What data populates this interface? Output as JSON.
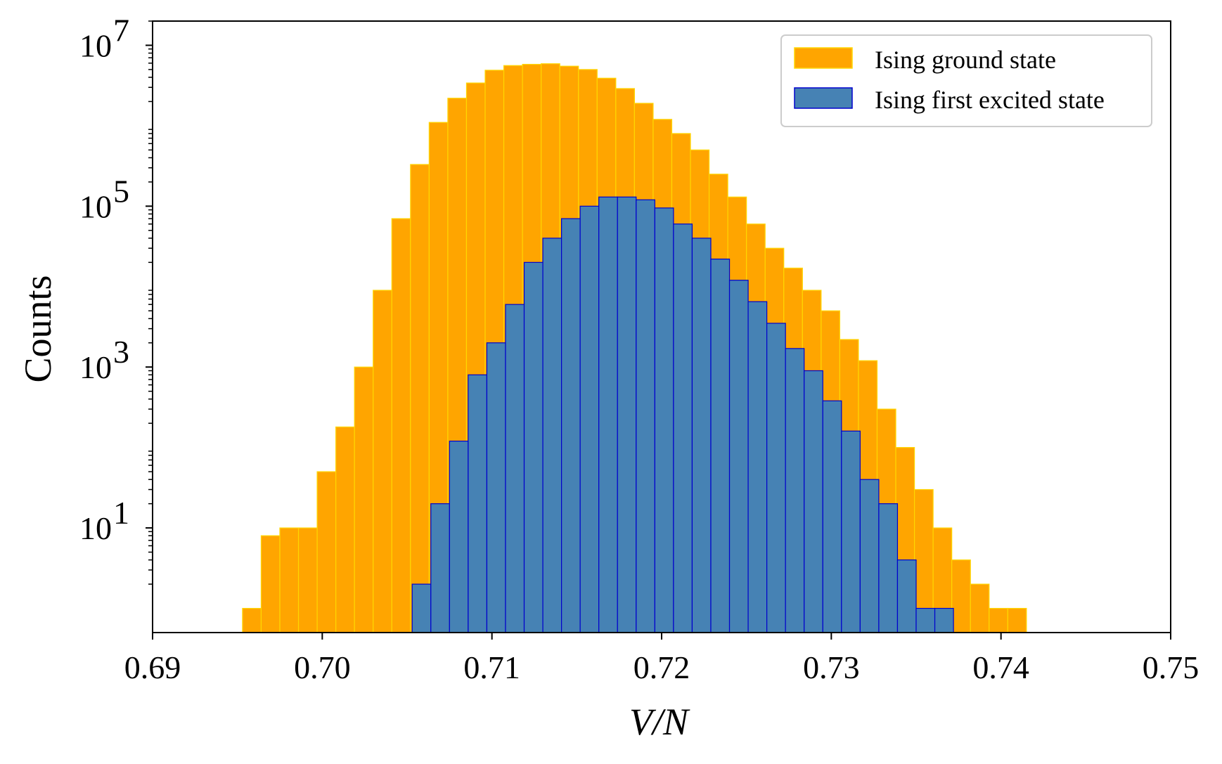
{
  "chart_data": {
    "type": "histogram",
    "title": "",
    "xlabel": "V/N",
    "ylabel": "Counts",
    "x_scale": "linear",
    "y_scale": "log",
    "xlim": [
      0.69,
      0.75
    ],
    "ylim": [
      0.5,
      20000000
    ],
    "x_ticks": [
      0.69,
      0.7,
      0.71,
      0.72,
      0.73,
      0.74,
      0.75
    ],
    "x_tick_labels": [
      "0.69",
      "0.70",
      "0.71",
      "0.72",
      "0.73",
      "0.74",
      "0.75"
    ],
    "y_ticks": [
      10,
      1000,
      100000,
      10000000
    ],
    "y_tick_bases": [
      "10",
      "10",
      "10",
      "10"
    ],
    "y_tick_exponents": [
      "1",
      "3",
      "5",
      "7"
    ],
    "legend_position": "top-right",
    "series": [
      {
        "name": "Ising ground state",
        "fill": "#FFA500",
        "edge": "#FFD700",
        "bin_start": 0.6953,
        "bin_width": 0.0011,
        "counts": [
          1,
          8,
          10,
          10,
          50,
          180,
          1000,
          9000,
          70000,
          330000,
          1100000,
          2200000,
          3400000,
          4900000,
          5600000,
          5800000,
          5900000,
          5500000,
          5000000,
          3900000,
          2900000,
          1900000,
          1200000,
          800000,
          500000,
          250000,
          130000,
          60000,
          30000,
          17000,
          9000,
          5000,
          2200,
          1200,
          300,
          100,
          30,
          10,
          4,
          2,
          1,
          1
        ]
      },
      {
        "name": "Ising first excited state",
        "fill": "#4682B4",
        "edge": "#0000CD",
        "bin_start": 0.7053,
        "bin_width": 0.0011,
        "counts": [
          2,
          20,
          120,
          800,
          2000,
          6000,
          20000,
          40000,
          70000,
          100000,
          130000,
          130000,
          120000,
          95000,
          60000,
          40000,
          22000,
          12000,
          6500,
          3500,
          1700,
          900,
          380,
          160,
          40,
          20,
          4,
          1,
          1
        ]
      }
    ]
  }
}
